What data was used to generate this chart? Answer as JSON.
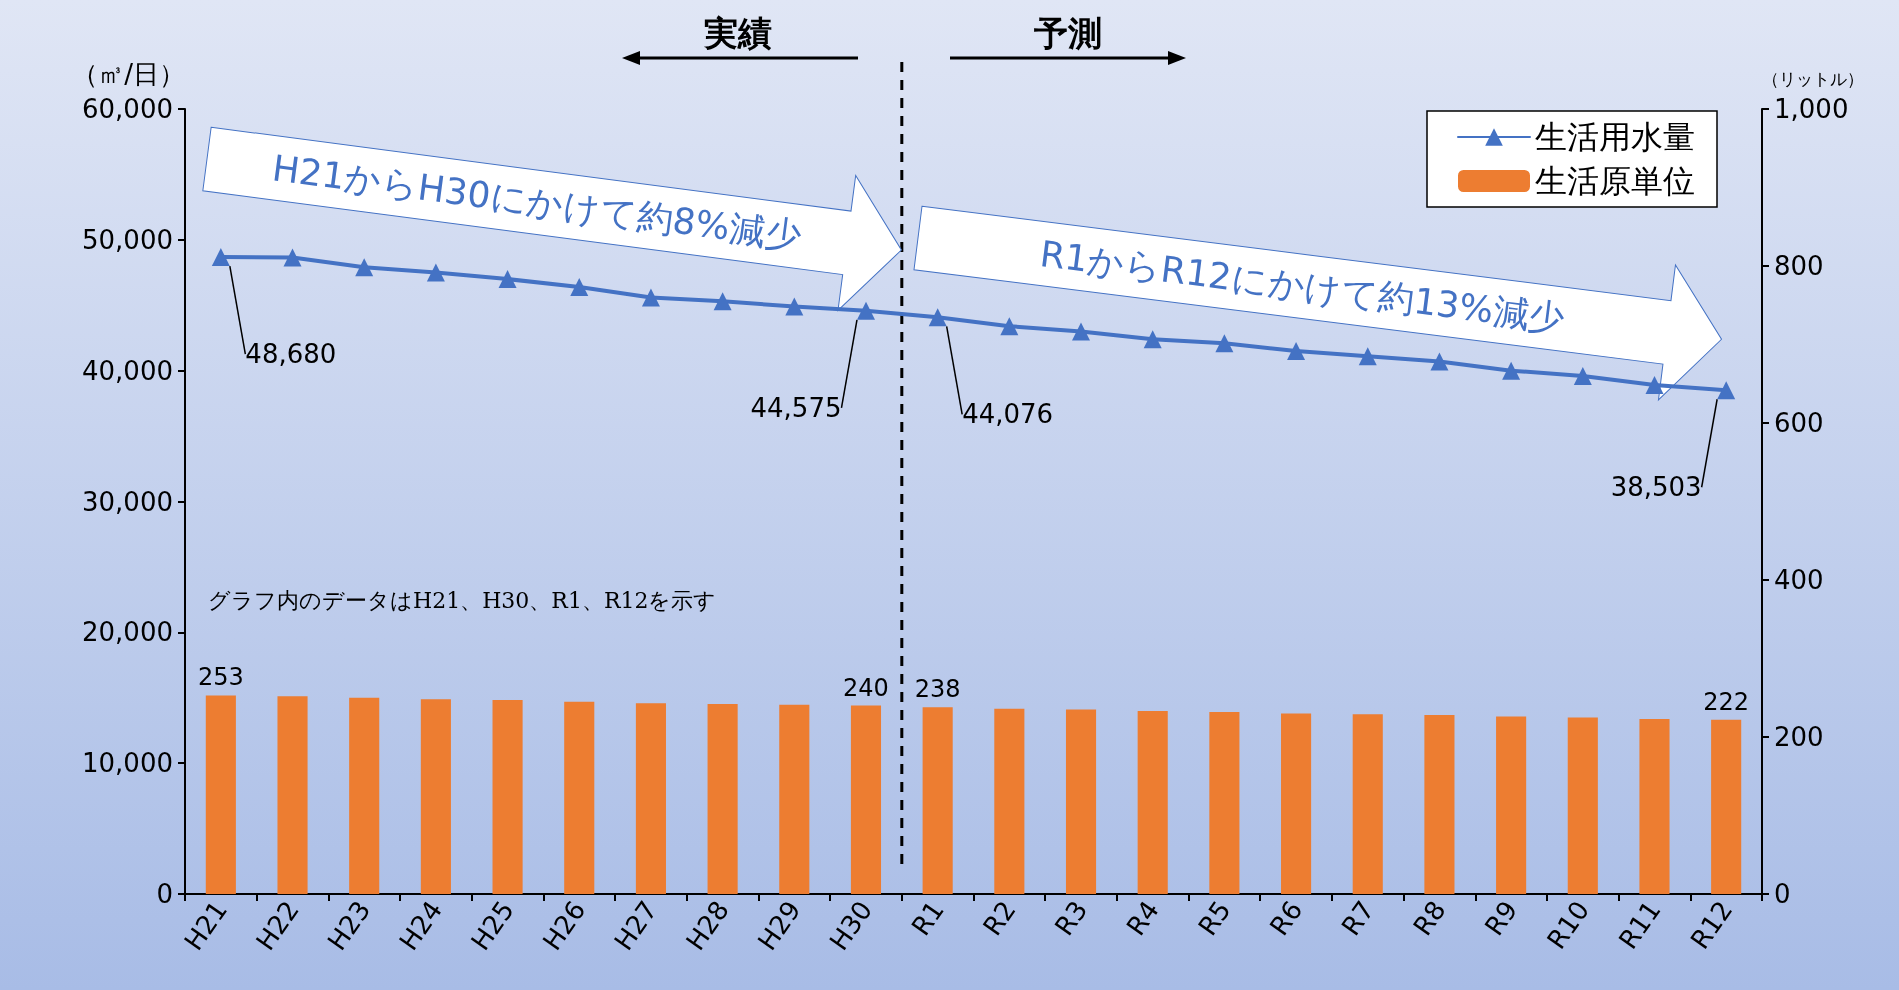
{
  "chart_data": {
    "type": "line",
    "ylabel": "（㎥/日）",
    "y2label": "（リットル）",
    "categories": [
      "H21",
      "H22",
      "H23",
      "H24",
      "H25",
      "H26",
      "H27",
      "H28",
      "H29",
      "H30",
      "R1",
      "R2",
      "R3",
      "R4",
      "R5",
      "R6",
      "R7",
      "R8",
      "R9",
      "R10",
      "R11",
      "R12"
    ],
    "series": [
      {
        "name": "生活用水量",
        "color": "#4472c4",
        "marker": "triangle",
        "values": [
          48680,
          48650,
          47900,
          47500,
          47000,
          46400,
          45600,
          45300,
          44900,
          44575,
          44076,
          43400,
          43000,
          42400,
          42100,
          41500,
          41100,
          40700,
          40000,
          39600,
          38900,
          38503
        ],
        "value_labels": [
          "48,680",
          null,
          null,
          null,
          null,
          null,
          null,
          null,
          null,
          "44,575",
          "44,076",
          null,
          null,
          null,
          null,
          null,
          null,
          null,
          null,
          null,
          null,
          "38,503"
        ]
      },
      {
        "name": "生活原単位",
        "type": "bar",
        "axis": "y2",
        "color": "#ed7d31",
        "values": [
          253,
          252,
          250,
          248,
          247,
          245,
          243,
          242,
          241,
          240,
          238,
          236,
          235,
          233,
          232,
          230,
          229,
          228,
          226,
          225,
          223,
          222
        ],
        "value_labels": [
          "253",
          null,
          null,
          null,
          null,
          null,
          null,
          null,
          null,
          "240",
          "238",
          null,
          null,
          null,
          null,
          null,
          null,
          null,
          null,
          null,
          null,
          "222"
        ]
      }
    ],
    "ylim": [
      0,
      60000
    ],
    "yticks": [
      0,
      {
        "value": 10000,
        "label": "10,000"
      },
      {
        "value": 20000,
        "label": "20,000"
      },
      {
        "value": 30000,
        "label": "30,000"
      },
      {
        "value": 40000,
        "label": "40,000"
      },
      {
        "value": 50000,
        "label": "50,000"
      },
      {
        "value": 60000,
        "label": "60,000"
      }
    ],
    "y2lim": [
      0,
      1000
    ],
    "y2ticks": [
      0,
      200,
      400,
      600,
      800,
      {
        "value": 1000,
        "label": "1,000"
      }
    ],
    "annotations": [
      "実績",
      "予測",
      "H21からH30にかけて約8%減少",
      "R1からR12にかけて約13%減少",
      "グラフ内のデータはH21、H30、R1、R12を示す"
    ],
    "grid": false,
    "legend": "top right"
  }
}
